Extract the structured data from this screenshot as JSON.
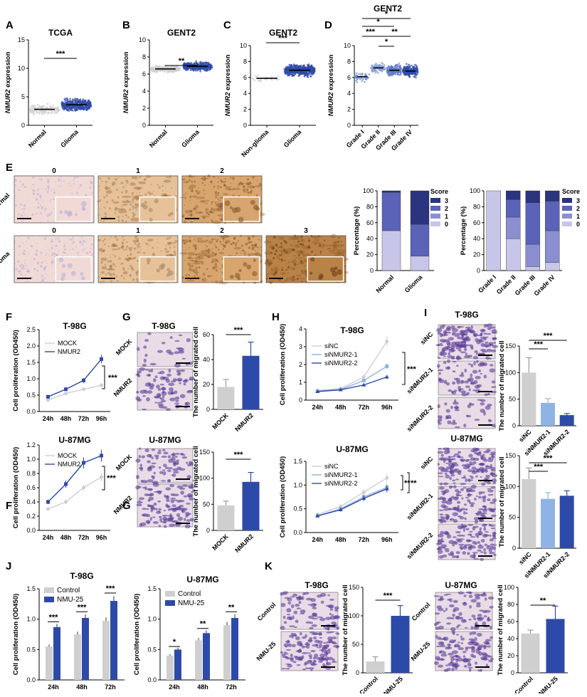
{
  "colors": {
    "blue": "#2e4aa8",
    "grey": "#cfcfcf",
    "light": "#8fb3e4",
    "lilac": "#c8c6e8",
    "score2": "#5a63b8",
    "score3": "#2b347e",
    "score1": "#8b8fcf",
    "stain": "#d9b38c",
    "violet": "#c9b6dc"
  },
  "panels": {
    "A": "A",
    "B": "B",
    "C": "C",
    "D": "D",
    "E": "E",
    "F": "F",
    "G": "G",
    "H": "H",
    "I": "I",
    "J": "J",
    "K": "K"
  },
  "titles": {
    "tcga": "TCGA",
    "gent2": "GENT2",
    "t98g": "T-98G",
    "u87mg": "U-87MG"
  },
  "labels": {
    "nmur2_expr": "NMUR2 expression",
    "prolif": "Cell proliferation (OD450)",
    "migrated": "The number of migrated cell",
    "percentage": "Percentage (%)",
    "score": "Score",
    "normal": "Normal",
    "glioma": "Glioma",
    "non_glioma": "Non-glioma",
    "grade1": "Grade I",
    "grade2": "Grade II",
    "grade3": "Grade III",
    "grade4": "Grade IV",
    "mock": "MOCK",
    "nmur2": "NMUR2",
    "sinc": "siNC",
    "si1": "siNMUR2-1",
    "si2": "siNMUR2-2",
    "control": "Control",
    "nmu25": "NMU-25",
    "h24": "24h",
    "h48": "48h",
    "h72": "72h",
    "h96": "96h"
  },
  "ihc_scores": {
    "normal": [
      "0",
      "1",
      "2"
    ],
    "glioma": [
      "0",
      "1",
      "2",
      "3"
    ]
  },
  "score_legend": [
    "3",
    "2",
    "1",
    "0"
  ],
  "sig": {
    "s1": "*",
    "s2": "**",
    "s3": "***"
  },
  "chart_data": [
    {
      "id": "A",
      "type": "scatter",
      "title": "TCGA",
      "ylabel": "NMUR2 expression",
      "categories": [
        "Normal",
        "Glioma"
      ],
      "ylim": [
        0,
        15
      ],
      "yticks": [
        0,
        5,
        10,
        15
      ],
      "means": [
        2.8,
        3.6
      ],
      "significance": "***"
    },
    {
      "id": "B",
      "type": "scatter",
      "title": "GENT2",
      "ylabel": "NMUR2 expression",
      "categories": [
        "Normal",
        "Glioma"
      ],
      "ylim": [
        0,
        10
      ],
      "yticks": [
        0,
        2,
        4,
        6,
        8,
        10
      ],
      "means": [
        6.6,
        6.9
      ],
      "significance": "**"
    },
    {
      "id": "C",
      "type": "scatter",
      "title": "GENT2",
      "ylabel": "NMUR2 expression",
      "categories": [
        "Non-glioma",
        "Glioma"
      ],
      "ylim": [
        0,
        10
      ],
      "yticks": [
        0,
        2,
        4,
        6,
        8,
        10
      ],
      "means": [
        5.9,
        6.9
      ],
      "significance": "***"
    },
    {
      "id": "D",
      "type": "scatter",
      "title": "GENT2",
      "ylabel": "NMUR2 expression",
      "categories": [
        "Grade I",
        "Grade II",
        "Grade III",
        "Grade IV"
      ],
      "ylim": [
        0,
        10
      ],
      "yticks": [
        0,
        2,
        4,
        6,
        8,
        10
      ],
      "means": [
        6.1,
        7.2,
        6.9,
        6.8
      ]
    },
    {
      "id": "E1",
      "type": "bar",
      "stacked": true,
      "ylabel": "Percentage (%)",
      "categories": [
        "Normal",
        "Glioma"
      ],
      "ylim": [
        0,
        100
      ],
      "yticks": [
        0,
        20,
        40,
        60,
        80,
        100
      ],
      "series": [
        {
          "name": "0",
          "values": [
            50,
            18
          ]
        },
        {
          "name": "1",
          "values": [
            0,
            0
          ]
        },
        {
          "name": "2",
          "values": [
            48,
            40
          ]
        },
        {
          "name": "3",
          "values": [
            2,
            42
          ]
        }
      ],
      "legend": "right"
    },
    {
      "id": "E2",
      "type": "bar",
      "stacked": true,
      "ylabel": "Percentage (%)",
      "categories": [
        "Grade I",
        "Grade II",
        "Grade III",
        "Grade IV"
      ],
      "ylim": [
        0,
        100
      ],
      "yticks": [
        0,
        20,
        40,
        60,
        80,
        100
      ],
      "series": [
        {
          "name": "0",
          "values": [
            100,
            40,
            5,
            10
          ]
        },
        {
          "name": "1",
          "values": [
            0,
            27,
            28,
            40
          ]
        },
        {
          "name": "2",
          "values": [
            0,
            22,
            52,
            37
          ]
        },
        {
          "name": "3",
          "values": [
            0,
            11,
            15,
            13
          ]
        }
      ],
      "legend": "right"
    },
    {
      "id": "F1",
      "type": "line",
      "title": "T-98G",
      "ylabel": "Cell proliferation (OD450)",
      "x": [
        "24h",
        "48h",
        "72h",
        "96h"
      ],
      "ylim": [
        0,
        2.5
      ],
      "yticks": [
        0,
        0.5,
        1,
        1.5,
        2,
        2.5
      ],
      "series": [
        {
          "name": "MOCK",
          "values": [
            0.35,
            0.55,
            0.68,
            0.8
          ]
        },
        {
          "name": "NMUR2",
          "values": [
            0.45,
            0.68,
            0.95,
            1.6
          ]
        }
      ],
      "significance": "***"
    },
    {
      "id": "F2",
      "type": "line",
      "title": "U-87MG",
      "ylabel": "Cell proliferation (OD450)",
      "x": [
        "24h",
        "48h",
        "72h",
        "96h"
      ],
      "ylim": [
        0,
        1.2
      ],
      "yticks": [
        0,
        0.2,
        0.4,
        0.6,
        0.8,
        1.0,
        1.2
      ],
      "series": [
        {
          "name": "MOCK",
          "values": [
            0.3,
            0.4,
            0.6,
            0.75
          ]
        },
        {
          "name": "NMUR2",
          "values": [
            0.4,
            0.65,
            0.95,
            1.05
          ]
        }
      ],
      "significance": "***"
    },
    {
      "id": "G1",
      "type": "bar",
      "ylabel": "The number of migrated cell",
      "categories": [
        "MOCK",
        "NMUR2"
      ],
      "ylim": [
        0,
        60
      ],
      "yticks": [
        0,
        20,
        40,
        60
      ],
      "values": [
        18,
        43
      ],
      "errors": [
        6,
        11
      ],
      "significance": "***"
    },
    {
      "id": "G2",
      "type": "bar",
      "ylabel": "The number of migrated cell",
      "categories": [
        "MOCK",
        "NMUR2"
      ],
      "ylim": [
        0,
        150
      ],
      "yticks": [
        0,
        50,
        100,
        150
      ],
      "values": [
        48,
        93
      ],
      "errors": [
        8,
        18
      ],
      "significance": "***"
    },
    {
      "id": "H1",
      "type": "line",
      "title": "T-98G",
      "ylabel": "Cell proliferation (OD450)",
      "x": [
        "24h",
        "48h",
        "72h",
        "96h"
      ],
      "ylim": [
        0,
        4
      ],
      "yticks": [
        0,
        1,
        2,
        3,
        4
      ],
      "series": [
        {
          "name": "siNC",
          "values": [
            0.55,
            0.65,
            1.3,
            3.3
          ]
        },
        {
          "name": "siNMUR2-1",
          "values": [
            0.5,
            0.6,
            1.1,
            1.9
          ]
        },
        {
          "name": "siNMUR2-2",
          "values": [
            0.48,
            0.58,
            0.85,
            1.3
          ]
        }
      ],
      "significance": "***"
    },
    {
      "id": "H2",
      "type": "line",
      "title": "U-87MG",
      "ylabel": "Cell proliferation (OD450)",
      "x": [
        "24h",
        "48h",
        "72h",
        "96h"
      ],
      "ylim": [
        0,
        1.5
      ],
      "yticks": [
        0,
        0.5,
        1.0,
        1.5
      ],
      "series": [
        {
          "name": "siNC",
          "values": [
            0.38,
            0.55,
            0.85,
            1.15
          ]
        },
        {
          "name": "siNMUR2-1",
          "values": [
            0.35,
            0.5,
            0.75,
            0.95
          ]
        },
        {
          "name": "siNMUR2-2",
          "values": [
            0.35,
            0.48,
            0.72,
            0.92
          ]
        }
      ],
      "significance": "**"
    },
    {
      "id": "I1",
      "type": "bar",
      "ylabel": "The number of migrated cell",
      "categories": [
        "siNC",
        "siNMUR2-1",
        "siNMUR2-2"
      ],
      "ylim": [
        0,
        150
      ],
      "yticks": [
        0,
        50,
        100,
        150
      ],
      "values": [
        100,
        43,
        20
      ],
      "errors": [
        28,
        8,
        3
      ],
      "significance": "***"
    },
    {
      "id": "I2",
      "type": "bar",
      "ylabel": "The number of migrated cell",
      "categories": [
        "siNC",
        "siNMUR2-1",
        "siNMUR2-2"
      ],
      "ylim": [
        0,
        150
      ],
      "yticks": [
        0,
        50,
        100,
        150
      ],
      "values": [
        112,
        80,
        85
      ],
      "errors": [
        18,
        10,
        8
      ],
      "significance": "***"
    },
    {
      "id": "J1",
      "type": "bar",
      "title": "T-98G",
      "ylabel": "Cell proliferation (OD450)",
      "categories": [
        "24h",
        "48h",
        "72h"
      ],
      "ylim": [
        0,
        1.5
      ],
      "yticks": [
        0,
        0.5,
        1.0,
        1.5
      ],
      "series": [
        {
          "name": "Control",
          "values": [
            0.55,
            0.75,
            0.97
          ]
        },
        {
          "name": "NMU-25",
          "values": [
            0.87,
            1.02,
            1.3
          ]
        }
      ],
      "significance": [
        "***",
        "***",
        "***"
      ]
    },
    {
      "id": "J2",
      "type": "bar",
      "title": "U-87MG",
      "ylabel": "Cell proliferation (OD450)",
      "categories": [
        "24h",
        "48h",
        "72h"
      ],
      "ylim": [
        0,
        1.5
      ],
      "yticks": [
        0,
        0.5,
        1.0,
        1.5
      ],
      "series": [
        {
          "name": "Control",
          "values": [
            0.4,
            0.65,
            0.9
          ]
        },
        {
          "name": "NMU-25",
          "values": [
            0.5,
            0.77,
            1.02
          ]
        }
      ],
      "significance": [
        "*",
        "**",
        "**"
      ]
    },
    {
      "id": "K1",
      "type": "bar",
      "ylabel": "The number of migrated cell",
      "categories": [
        "Control",
        "NMU-25"
      ],
      "ylim": [
        0,
        150
      ],
      "yticks": [
        0,
        50,
        100,
        150
      ],
      "values": [
        20,
        100
      ],
      "errors": [
        8,
        18
      ],
      "significance": "***"
    },
    {
      "id": "K2",
      "type": "bar",
      "ylabel": "The number of migrated cell",
      "categories": [
        "Control",
        "NMU-25"
      ],
      "ylim": [
        0,
        100
      ],
      "yticks": [
        0,
        20,
        40,
        60,
        80,
        100
      ],
      "values": [
        46,
        63
      ],
      "errors": [
        4,
        15
      ],
      "significance": "**"
    }
  ]
}
